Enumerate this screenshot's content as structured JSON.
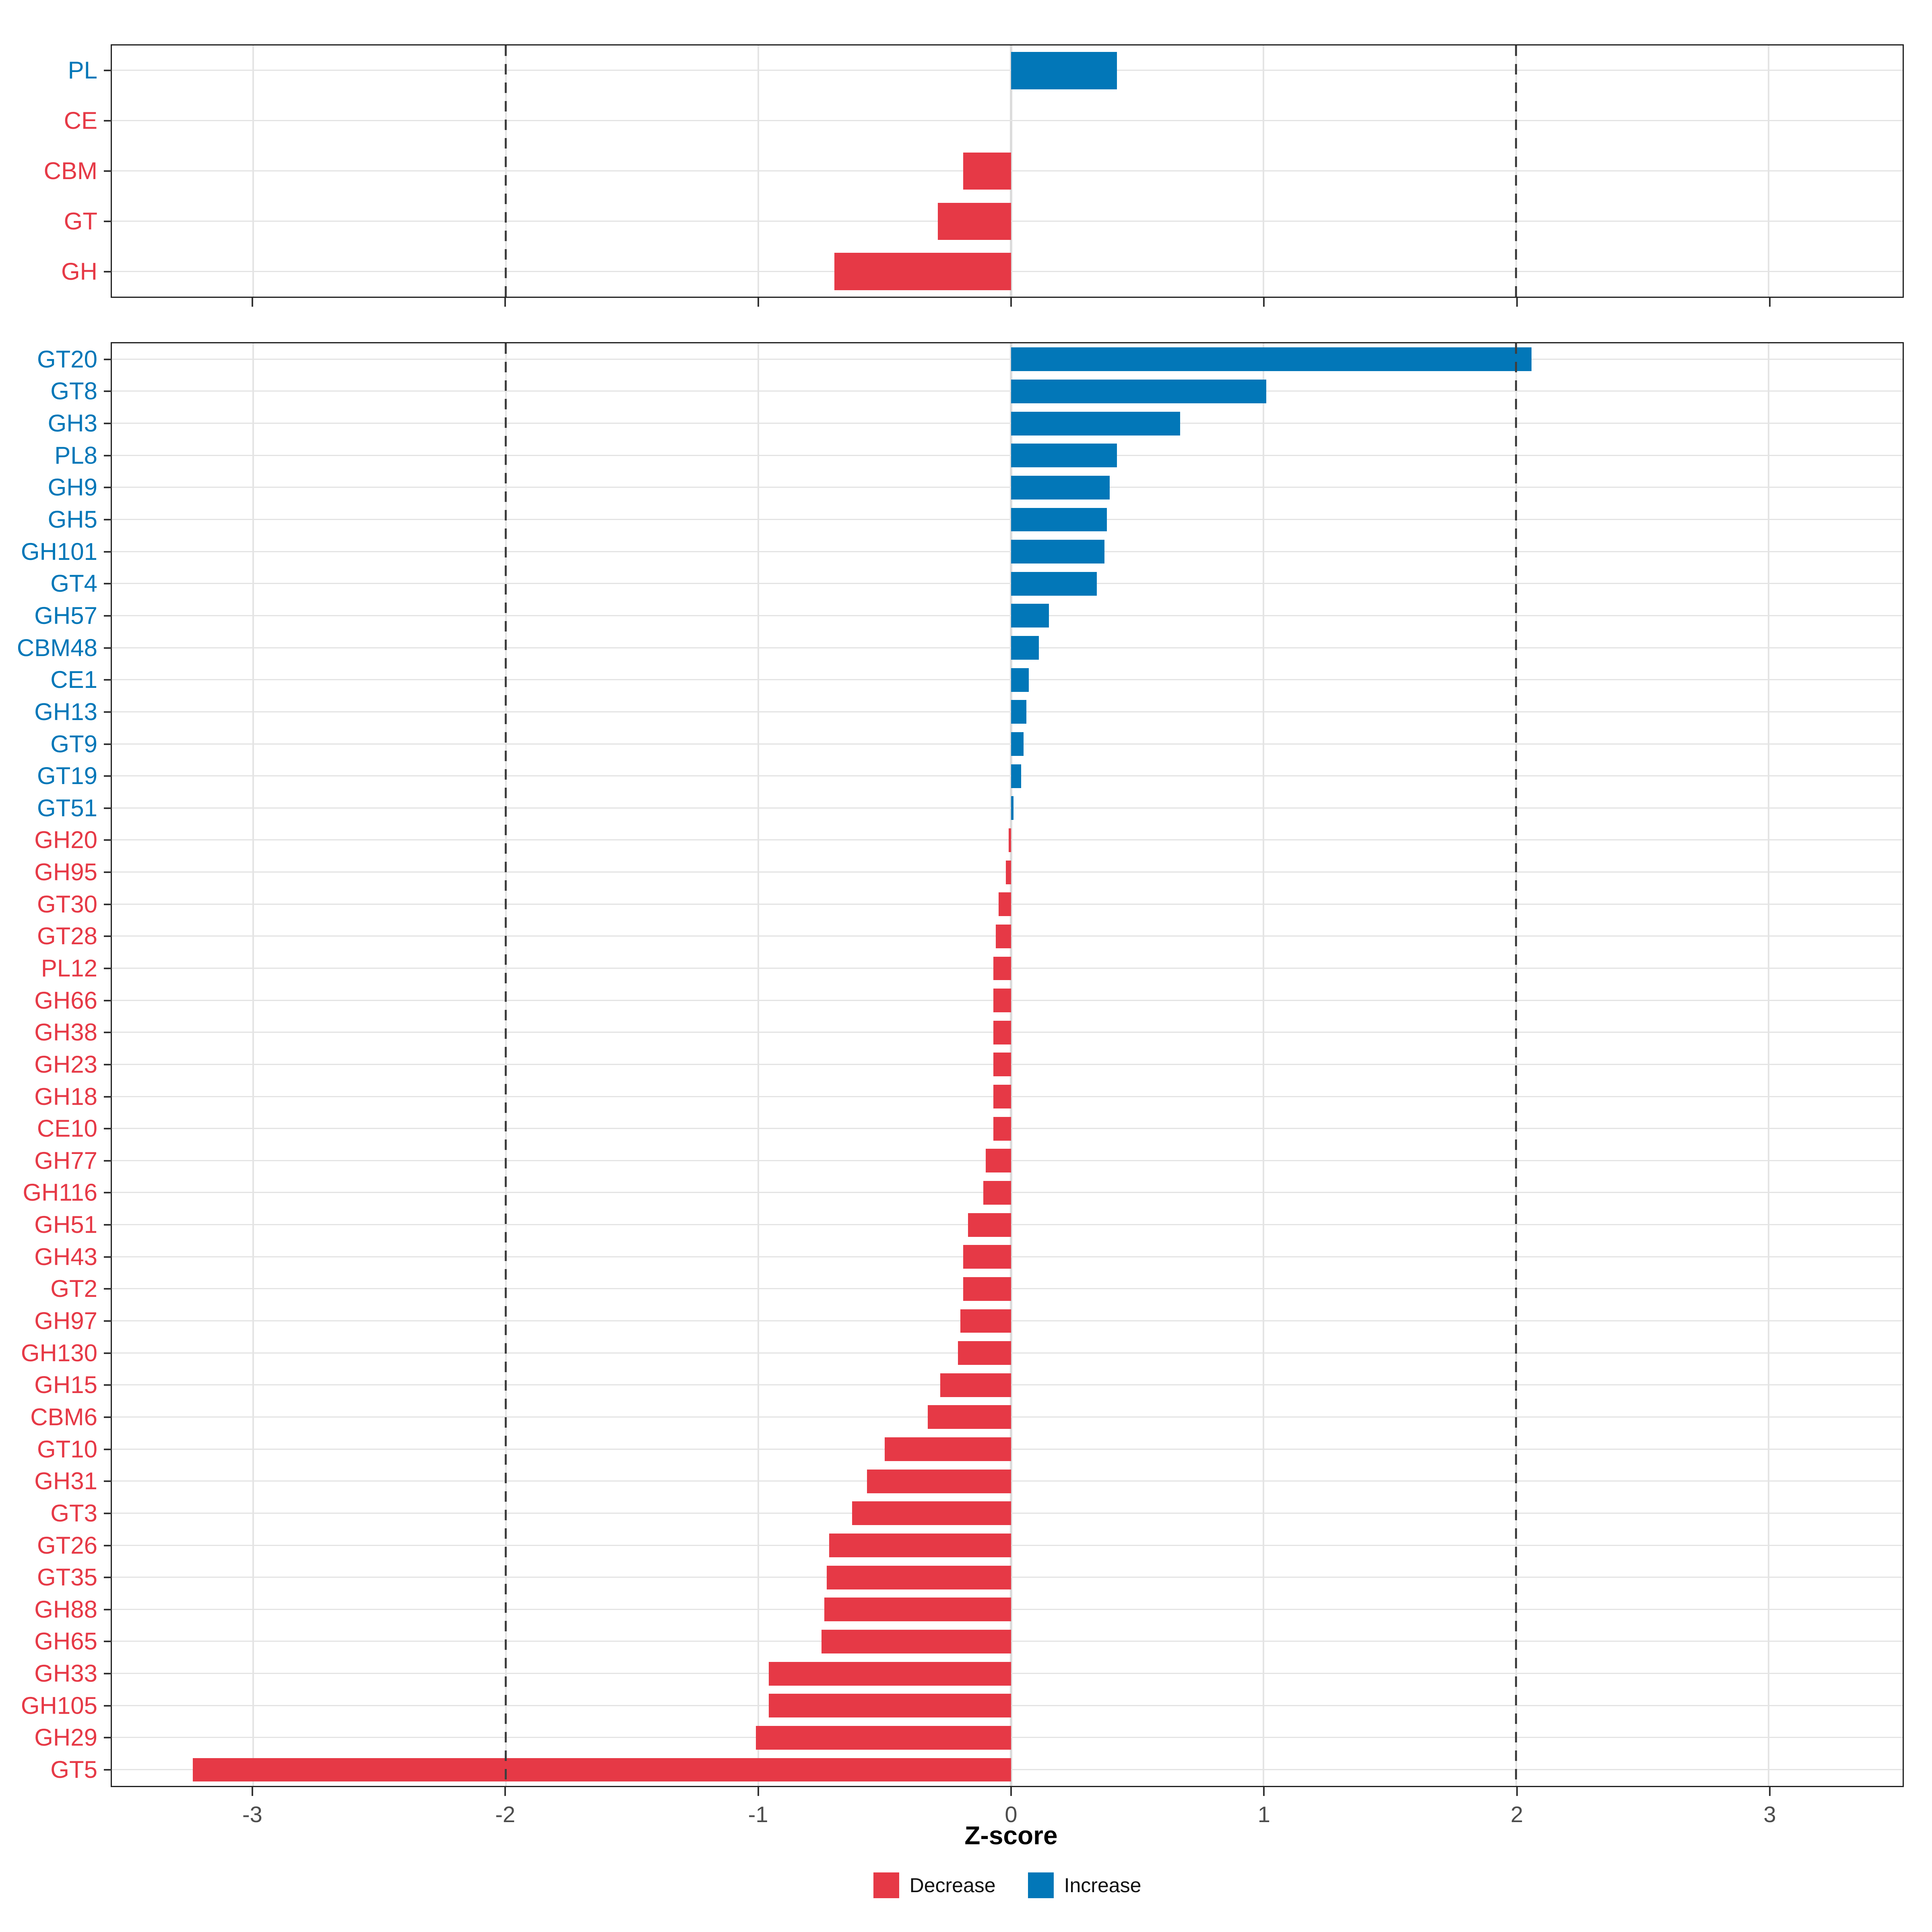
{
  "colors": {
    "decrease": "#E63946",
    "increase": "#0277B8",
    "grid": "#E4E4E4",
    "zero_grid": "#DCDCDC",
    "dashed_line": "#3F3F3F",
    "axis_text": "#4D4D4D",
    "panel_border": "#222222"
  },
  "x_axis": {
    "title": "Z-score",
    "tick_values": [
      -3,
      -2,
      -1,
      0,
      1,
      2,
      3
    ],
    "tick_labels": [
      "-3",
      "-2",
      "-1",
      "0",
      "1",
      "2",
      "3"
    ]
  },
  "legend": {
    "items": [
      {
        "label": "Decrease",
        "color": "#E63946"
      },
      {
        "label": "Increase",
        "color": "#0277B8"
      }
    ]
  },
  "chart_data": [
    {
      "type": "bar",
      "orientation": "horizontal",
      "panel": "cazyme-class",
      "legend_position": "bottom",
      "grid": true,
      "xlim": [
        -3.56,
        3.53
      ],
      "dashed_vlines": [
        -2,
        2
      ],
      "xlabel": "Z-score",
      "categories": [
        "PL",
        "CE",
        "CBM",
        "GT",
        "GH"
      ],
      "values": [
        0.42,
        0.0,
        -0.19,
        -0.29,
        -0.7
      ]
    },
    {
      "type": "bar",
      "orientation": "horizontal",
      "panel": "cazyme-family",
      "legend_position": "bottom",
      "grid": true,
      "xlim": [
        -3.56,
        3.53
      ],
      "dashed_vlines": [
        -2,
        2
      ],
      "xlabel": "Z-score",
      "categories": [
        "GT20",
        "GT8",
        "GH3",
        "PL8",
        "GH9",
        "GH5",
        "GH101",
        "GT4",
        "GH57",
        "CBM48",
        "CE1",
        "GH13",
        "GT9",
        "GT19",
        "GT51",
        "GH20",
        "GH95",
        "GT30",
        "GT28",
        "PL12",
        "GH66",
        "GH38",
        "GH23",
        "GH18",
        "CE10",
        "GH77",
        "GH116",
        "GH51",
        "GH43",
        "GT2",
        "GH97",
        "GH130",
        "GH15",
        "CBM6",
        "GT10",
        "GH31",
        "GT3",
        "GT26",
        "GT35",
        "GH88",
        "GH65",
        "GH33",
        "GH105",
        "GH29",
        "GT5"
      ],
      "values": [
        2.06,
        1.01,
        0.67,
        0.42,
        0.39,
        0.38,
        0.37,
        0.34,
        0.15,
        0.11,
        0.07,
        0.06,
        0.05,
        0.04,
        0.01,
        -0.01,
        -0.02,
        -0.05,
        -0.06,
        -0.07,
        -0.07,
        -0.07,
        -0.07,
        -0.07,
        -0.07,
        -0.1,
        -0.11,
        -0.17,
        -0.19,
        -0.19,
        -0.2,
        -0.21,
        -0.28,
        -0.33,
        -0.5,
        -0.57,
        -0.63,
        -0.72,
        -0.73,
        -0.74,
        -0.75,
        -0.96,
        -0.96,
        -1.01,
        -3.24
      ]
    }
  ]
}
